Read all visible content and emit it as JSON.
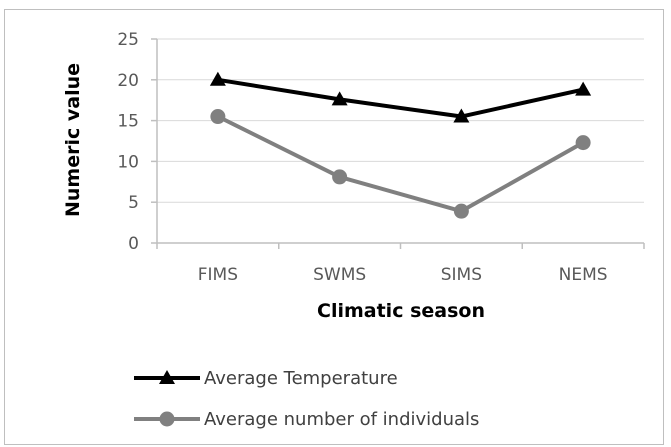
{
  "chart_data": {
    "type": "line",
    "categories": [
      "FIMS",
      "SWMS",
      "SIMS",
      "NEMS"
    ],
    "series": [
      {
        "name": "Average Temperature",
        "values": [
          20.0,
          17.6,
          15.5,
          18.8
        ],
        "color": "#000000",
        "marker": "triangle"
      },
      {
        "name": "Average number of individuals",
        "values": [
          15.5,
          8.1,
          3.9,
          12.3
        ],
        "color": "#808080",
        "marker": "circle"
      }
    ],
    "title": "",
    "xlabel": "Climatic season",
    "ylabel": "Numeric value",
    "ylim": [
      0,
      25
    ],
    "yticks": [
      0,
      5,
      10,
      15,
      20,
      25
    ],
    "grid": true,
    "legend_position": "bottom"
  }
}
